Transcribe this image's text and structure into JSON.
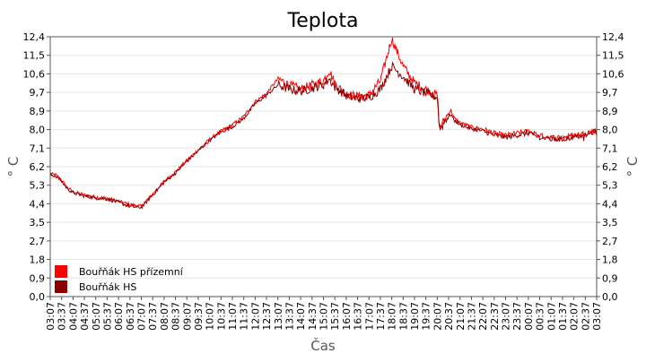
{
  "chart_data": {
    "type": "line",
    "title": "Teplota",
    "xlabel": "Čas",
    "ylabel": "° C",
    "ylabel_right": "° C",
    "ylim": [
      0,
      12.4
    ],
    "y_ticks": [
      "0,0",
      "0,9",
      "1,8",
      "2,7",
      "3,5",
      "4,4",
      "5,3",
      "6,2",
      "7,1",
      "8,0",
      "8,9",
      "9,7",
      "10,6",
      "11,5",
      "12,4"
    ],
    "y_tick_values": [
      0,
      0.886,
      1.771,
      2.657,
      3.543,
      4.429,
      5.314,
      6.2,
      7.086,
      7.971,
      8.857,
      9.743,
      10.629,
      11.514,
      12.4
    ],
    "x_ticks": [
      "03:07",
      "03:37",
      "04:07",
      "04:37",
      "05:07",
      "05:37",
      "06:07",
      "06:37",
      "07:07",
      "07:37",
      "08:07",
      "08:37",
      "09:07",
      "09:37",
      "10:07",
      "10:37",
      "11:07",
      "11:37",
      "12:07",
      "12:37",
      "13:07",
      "13:37",
      "14:07",
      "14:37",
      "15:07",
      "15:37",
      "16:07",
      "16:37",
      "17:07",
      "17:37",
      "18:07",
      "18:37",
      "19:07",
      "19:37",
      "20:07",
      "20:37",
      "21:07",
      "21:37",
      "22:07",
      "22:37",
      "23:07",
      "23:37",
      "00:07",
      "00:37",
      "01:07",
      "01:37",
      "02:07",
      "02:37",
      "03:07"
    ],
    "grid": true,
    "legend_position": "bottom-left",
    "series": [
      {
        "name": "Bouřňák HS přízemní",
        "color": "#ff0000",
        "x_hours": [
          0,
          0.25,
          0.5,
          0.75,
          1,
          1.5,
          2,
          2.5,
          3,
          3.5,
          4,
          4.5,
          5,
          5.5,
          6,
          6.5,
          7,
          7.5,
          8,
          8.5,
          9,
          9.5,
          10,
          10.5,
          11,
          11.5,
          12,
          12.25,
          12.5,
          12.75,
          13,
          13.25,
          13.5,
          14,
          14.5,
          15,
          15.5,
          16,
          16.5,
          17,
          17.1,
          17.25,
          17.4,
          17.6,
          17.75,
          18,
          18.5,
          19,
          19.5,
          20,
          20.5,
          21,
          21.5,
          22,
          22.5,
          23,
          23.5,
          24
        ],
        "values": [
          5.85,
          5.8,
          5.55,
          5.2,
          5.0,
          4.85,
          4.75,
          4.7,
          4.55,
          4.4,
          4.3,
          4.9,
          5.5,
          5.95,
          6.5,
          7.0,
          7.5,
          7.9,
          8.2,
          8.6,
          9.3,
          9.7,
          10.4,
          10.1,
          9.9,
          10.1,
          10.3,
          10.8,
          10.2,
          9.9,
          9.7,
          9.6,
          9.55,
          9.6,
          10.3,
          12.3,
          11.0,
          10.2,
          9.9,
          9.6,
          8.1,
          8.3,
          8.6,
          8.9,
          8.5,
          8.3,
          8.1,
          8.0,
          7.8,
          7.7,
          7.8,
          7.9,
          7.7,
          7.6,
          7.6,
          7.7,
          7.8,
          7.95
        ]
      },
      {
        "name": "Bouřňák HS",
        "color": "#8b0000",
        "x_hours": [
          0,
          0.25,
          0.5,
          0.75,
          1,
          1.5,
          2,
          2.5,
          3,
          3.5,
          4,
          4.5,
          5,
          5.5,
          6,
          6.5,
          7,
          7.5,
          8,
          8.5,
          9,
          9.5,
          10,
          10.5,
          11,
          11.5,
          12,
          12.25,
          12.5,
          12.75,
          13,
          13.25,
          13.5,
          14,
          14.5,
          15,
          15.5,
          16,
          16.5,
          17,
          17.1,
          17.25,
          17.4,
          17.6,
          17.75,
          18,
          18.5,
          19,
          19.5,
          20,
          20.5,
          21,
          21.5,
          22,
          22.5,
          23,
          23.5,
          24
        ],
        "values": [
          5.8,
          5.75,
          5.5,
          5.15,
          4.95,
          4.8,
          4.7,
          4.65,
          4.5,
          4.3,
          4.25,
          4.85,
          5.45,
          5.9,
          6.45,
          6.95,
          7.45,
          7.85,
          8.1,
          8.5,
          9.2,
          9.6,
          10.1,
          9.9,
          9.8,
          9.95,
          10.1,
          10.4,
          10.0,
          9.8,
          9.6,
          9.5,
          9.45,
          9.5,
          9.9,
          11.0,
          10.5,
          9.9,
          9.7,
          9.5,
          8.0,
          8.2,
          8.5,
          8.7,
          8.4,
          8.2,
          8.0,
          7.9,
          7.7,
          7.6,
          7.7,
          7.8,
          7.6,
          7.5,
          7.5,
          7.6,
          7.7,
          7.9
        ]
      }
    ]
  }
}
